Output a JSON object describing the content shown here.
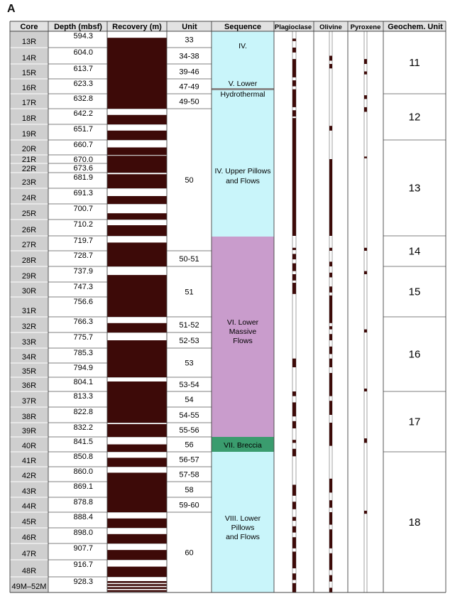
{
  "panel_label": "A",
  "headers": {
    "core": "Core",
    "depth": "Depth (mbsf)",
    "recovery": "Recovery (m)",
    "unit": "Unit",
    "sequence": "Sequence",
    "plagioclase": "Plagioclase",
    "olivine": "Olivine",
    "pyroxene": "Pyroxene",
    "geochem": "Geochem. Unit"
  },
  "colors": {
    "recovery": "#3d0a08",
    "core_cell": "#cfcfcf",
    "header_bg": "#e2e2e2",
    "seq_cyan": "#c9f5fa",
    "seq_purple": "#c99ccc",
    "seq_green": "#3a9c6e",
    "seq_gray_line": "#8a8a8a"
  },
  "cores": [
    {
      "name": "13R",
      "depth": "594.3"
    },
    {
      "name": "14R",
      "depth": "604.0"
    },
    {
      "name": "15R",
      "depth": "613.7"
    },
    {
      "name": "16R",
      "depth": "623.3"
    },
    {
      "name": "17R",
      "depth": "632.8"
    },
    {
      "name": "18R",
      "depth": "642.2"
    },
    {
      "name": "19R",
      "depth": "651.7"
    },
    {
      "name": "20R",
      "depth": "660.7"
    },
    {
      "name": "21R",
      "depth": "670.0"
    },
    {
      "name": "22R",
      "depth": "673.6"
    },
    {
      "name": "23R",
      "depth": "681.9"
    },
    {
      "name": "24R",
      "depth": "691.3"
    },
    {
      "name": "25R",
      "depth": "700.7"
    },
    {
      "name": "26R",
      "depth": "710.2"
    },
    {
      "name": "27R",
      "depth": "719.7"
    },
    {
      "name": "28R",
      "depth": "728.7"
    },
    {
      "name": "29R",
      "depth": "737.9"
    },
    {
      "name": "30R",
      "depth": "747.3"
    },
    {
      "name": "31R",
      "depth": "756.6"
    },
    {
      "name": "32R",
      "depth": "766.3"
    },
    {
      "name": "33R",
      "depth": "775.7"
    },
    {
      "name": "34R",
      "depth": "785.3"
    },
    {
      "name": "35R",
      "depth": "794.9"
    },
    {
      "name": "36R",
      "depth": "804.1"
    },
    {
      "name": "37R",
      "depth": "813.3"
    },
    {
      "name": "38R",
      "depth": "822.8"
    },
    {
      "name": "39R",
      "depth": "832.2"
    },
    {
      "name": "40R",
      "depth": "841.5"
    },
    {
      "name": "41R",
      "depth": "850.8"
    },
    {
      "name": "42R",
      "depth": "860.0"
    },
    {
      "name": "43R",
      "depth": "869.1"
    },
    {
      "name": "44R",
      "depth": "878.8"
    },
    {
      "name": "45R",
      "depth": "888.4"
    },
    {
      "name": "46R",
      "depth": "898.0"
    },
    {
      "name": "47R",
      "depth": "907.7"
    },
    {
      "name": "48R",
      "depth": "916.7"
    },
    {
      "name": "49M–52M",
      "depth": "928.3"
    }
  ],
  "recovery_bars": [
    [
      0.6,
      0.75
    ],
    [
      1.0,
      1.0
    ],
    [
      1.0,
      1.0
    ],
    [
      1.0,
      1.0
    ],
    [
      1.0,
      1.0
    ],
    [
      0.6,
      1.0
    ],
    [
      0.6,
      1.0
    ],
    [
      0.5,
      1.0
    ],
    [
      0.9,
      1.0
    ],
    [
      1.0,
      1.0
    ],
    [
      0.9,
      1.0
    ],
    [
      0.5,
      1.0
    ],
    [
      0.4,
      1.0
    ],
    [
      0.65,
      1.0
    ],
    [
      0.55,
      1.0
    ],
    [
      1.0,
      1.0
    ],
    [
      0.45,
      1.0
    ],
    [
      1.0,
      1.0
    ],
    [
      1.0,
      1.0
    ],
    [
      0.6,
      1.0
    ],
    [
      0.5,
      1.0
    ],
    [
      1.0,
      1.0
    ],
    [
      1.0,
      1.0
    ],
    [
      0.7,
      1.0
    ],
    [
      1.0,
      1.0
    ],
    [
      1.0,
      1.0
    ],
    [
      0.9,
      1.0
    ],
    [
      0.5,
      1.0
    ],
    [
      0.6,
      1.0
    ],
    [
      0.6,
      1.0
    ],
    [
      1.0,
      1.0
    ],
    [
      1.0,
      1.0
    ],
    [
      0.6,
      1.0
    ],
    [
      0.6,
      1.0
    ],
    [
      0.6,
      1.0
    ],
    [
      0.6,
      1.0
    ],
    [
      0.75,
      1.0
    ]
  ],
  "units": [
    {
      "label": "33",
      "from": 0,
      "to": 1
    },
    {
      "label": "34-38",
      "from": 1,
      "to": 2
    },
    {
      "label": "39-46",
      "from": 2,
      "to": 3
    },
    {
      "label": "47-49",
      "from": 3,
      "to": 4
    },
    {
      "label": "49-50",
      "from": 4,
      "to": 5
    },
    {
      "label": "50",
      "from": 5,
      "to": 15
    },
    {
      "label": "50-51",
      "from": 15,
      "to": 16
    },
    {
      "label": "51",
      "from": 16,
      "to": 19
    },
    {
      "label": "51-52",
      "from": 19,
      "to": 20
    },
    {
      "label": "52-53",
      "from": 20,
      "to": 21
    },
    {
      "label": "53",
      "from": 21,
      "to": 23
    },
    {
      "label": "53-54",
      "from": 23,
      "to": 24
    },
    {
      "label": "54",
      "from": 24,
      "to": 25
    },
    {
      "label": "54-55",
      "from": 25,
      "to": 26
    },
    {
      "label": "55-56",
      "from": 26,
      "to": 27
    },
    {
      "label": "56",
      "from": 27,
      "to": 28
    },
    {
      "label": "56-57",
      "from": 28,
      "to": 29
    },
    {
      "label": "57-58",
      "from": 29,
      "to": 30
    },
    {
      "label": "58",
      "from": 30,
      "to": 31
    },
    {
      "label": "59-60",
      "from": 31,
      "to": 32
    },
    {
      "label": "60",
      "from": 32,
      "to": 37
    }
  ],
  "sequences": [
    {
      "lines": [
        "IV."
      ],
      "color": "cyan"
    },
    {
      "lines": [
        "V. Lower"
      ],
      "color": "cyan"
    },
    {
      "lines": [
        "Hydrothermal"
      ],
      "color": "cyan"
    },
    {
      "lines": [
        "IV. Upper Pillows",
        "and Flows"
      ],
      "color": "cyan"
    },
    {
      "lines": [
        "VI. Lower",
        "Massive",
        "Flows"
      ],
      "color": "purple"
    },
    {
      "lines": [
        "VII. Breccia"
      ],
      "color": "green"
    },
    {
      "lines": [
        "VIII. Lower",
        "Pillows",
        "and Flows"
      ],
      "color": "cyan"
    }
  ],
  "geochem_units": [
    {
      "label": "11",
      "from": 0,
      "to": 4
    },
    {
      "label": "12",
      "from": 4,
      "to": 7
    },
    {
      "label": "13",
      "from": 7,
      "to": 14
    },
    {
      "label": "14",
      "from": 14,
      "to": 16
    },
    {
      "label": "15",
      "from": 16,
      "to": 19
    },
    {
      "label": "16",
      "from": 19,
      "to": 24
    },
    {
      "label": "17",
      "from": 24,
      "to": 28
    },
    {
      "label": "18",
      "from": 28,
      "to": 37
    }
  ],
  "mineral_logs": {
    "plagioclase": [
      [
        0.45,
        0.6
      ],
      [
        1.0,
        1.3
      ],
      [
        1.7,
        2.9
      ],
      [
        3.1,
        3.5
      ],
      [
        3.7,
        4.9
      ],
      [
        5.1,
        5.5
      ],
      [
        5.6,
        14.0
      ],
      [
        14.8,
        14.95
      ],
      [
        15.2,
        15.55
      ],
      [
        15.8,
        16.3
      ],
      [
        16.5,
        16.9
      ],
      [
        17.05,
        17.8
      ],
      [
        21.7,
        22.3
      ],
      [
        24.0,
        24.3
      ],
      [
        24.7,
        25.6
      ],
      [
        25.9,
        26.4
      ],
      [
        27.2,
        27.4
      ],
      [
        27.8,
        28.3
      ],
      [
        30.2,
        30.9
      ],
      [
        31.3,
        31.8
      ],
      [
        32.3,
        32.55
      ],
      [
        32.9,
        33.3
      ],
      [
        33.6,
        34.3
      ],
      [
        34.5,
        35.5
      ],
      [
        35.8,
        36.2
      ],
      [
        36.4,
        37.0
      ]
    ],
    "olivine": [
      [
        1.5,
        1.8
      ],
      [
        2.0,
        2.3
      ],
      [
        6.1,
        6.4
      ],
      [
        8.5,
        14.0
      ],
      [
        14.8,
        15.0
      ],
      [
        15.7,
        16.0
      ],
      [
        16.4,
        16.7
      ],
      [
        17.3,
        17.7
      ],
      [
        17.9,
        19.4
      ],
      [
        19.6,
        19.8
      ],
      [
        20.1,
        20.5
      ],
      [
        20.9,
        21.4
      ],
      [
        21.7,
        22.3
      ],
      [
        22.7,
        24.3
      ],
      [
        24.6,
        25.5
      ],
      [
        26.0,
        27.6
      ],
      [
        29.8,
        30.7
      ],
      [
        31.2,
        31.7
      ],
      [
        32.0,
        32.8
      ],
      [
        33.1,
        34.3
      ],
      [
        34.6,
        35.6
      ],
      [
        35.9,
        36.3
      ],
      [
        36.7,
        37.0
      ]
    ],
    "pyroxene": [
      [
        1.7,
        2.0
      ],
      [
        2.5,
        2.7
      ],
      [
        4.1,
        4.35
      ],
      [
        4.9,
        5.2
      ],
      [
        8.2,
        8.4
      ],
      [
        14.8,
        15.0
      ],
      [
        16.3,
        16.5
      ],
      [
        19.8,
        20.0
      ],
      [
        23.8,
        24.0
      ],
      [
        27.1,
        27.4
      ],
      [
        31.9,
        32.1
      ]
    ]
  }
}
